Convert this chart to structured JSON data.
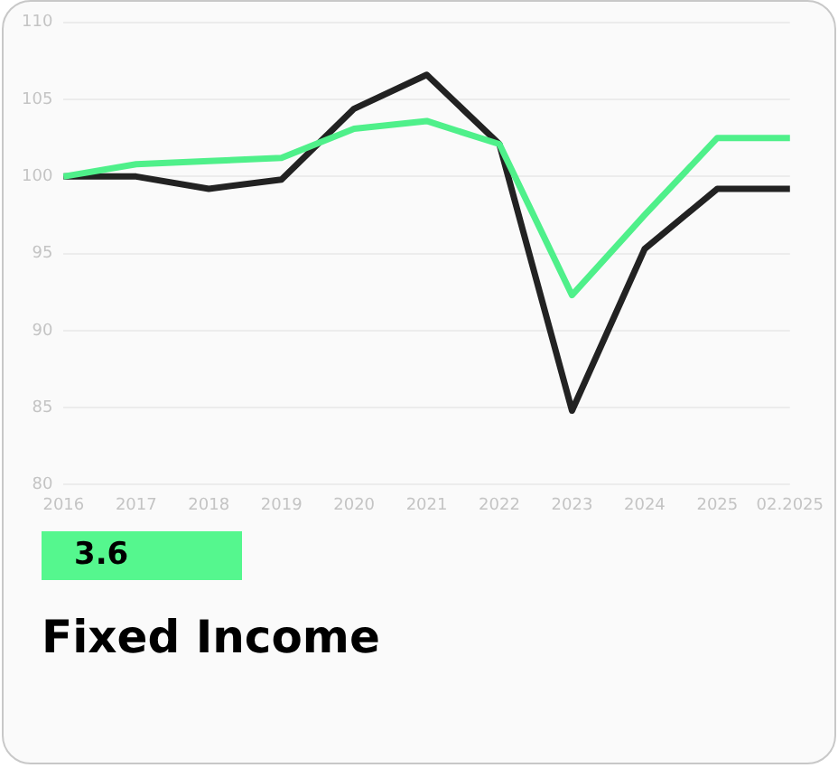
{
  "chart_data": {
    "type": "line",
    "title": "Fixed Income",
    "annotations": [
      "3.6"
    ],
    "categories": [
      "2016",
      "2017",
      "2018",
      "2019",
      "2020",
      "2021",
      "2022",
      "2023",
      "2024",
      "2025",
      "02.2025"
    ],
    "series": [
      {
        "color": "#4ff08a",
        "values": [
          100,
          100.8,
          101.0,
          101.2,
          103.1,
          103.6,
          102.1,
          92.3,
          97.5,
          102.5,
          102.5
        ]
      },
      {
        "color": "#222222",
        "values": [
          100,
          100,
          99.2,
          99.8,
          104.4,
          106.6,
          102.1,
          84.8,
          95.3,
          99.2,
          99.2
        ]
      }
    ],
    "ylim": [
      80,
      110
    ],
    "yticks": [
      80,
      85,
      90,
      95,
      100,
      105,
      110
    ],
    "grid": "y",
    "legend": false,
    "marker": "none",
    "line_style": "solid"
  }
}
